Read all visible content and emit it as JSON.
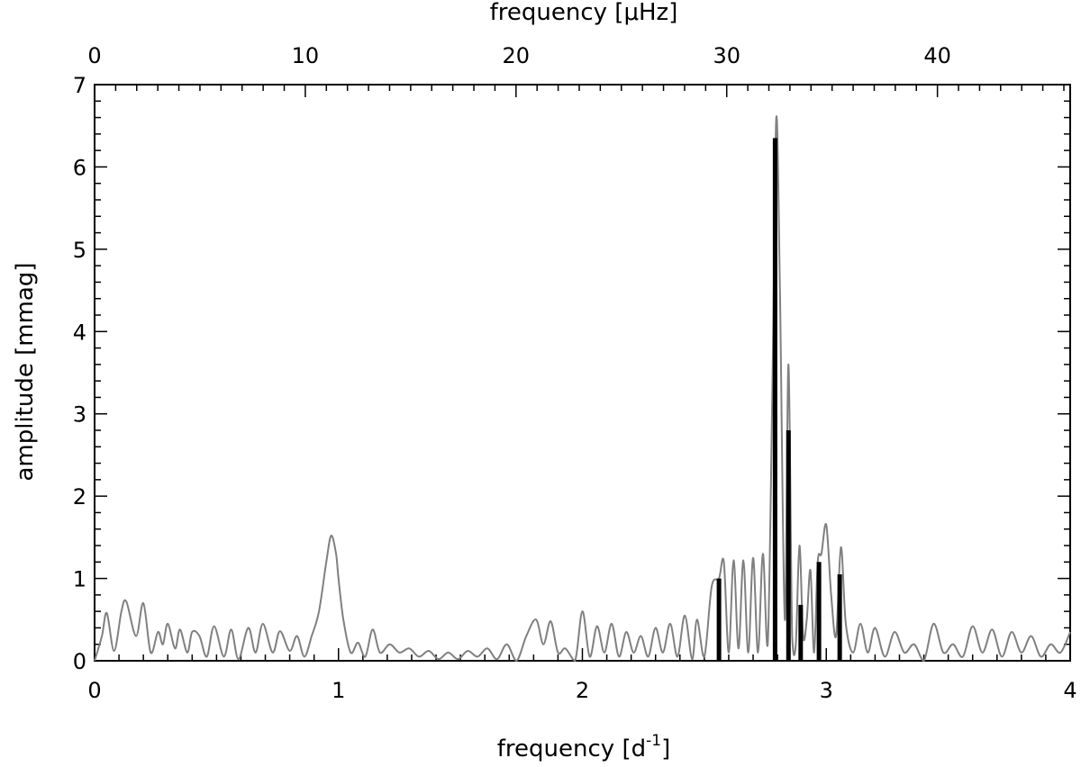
{
  "chart_data": {
    "type": "line",
    "xlabel": "frequency [d",
    "xlabel_sup": "-1",
    "xlabel_end": "]",
    "x2label": "frequency [μHz]",
    "ylabel": "amplitude [mmag]",
    "xlim": [
      0,
      4
    ],
    "ylim": [
      0,
      7
    ],
    "x2lim": [
      0,
      46.3
    ],
    "x_ticks": [
      0,
      1,
      2,
      3,
      4
    ],
    "x_tick_labels": [
      "0",
      "1",
      "2",
      "3",
      "4"
    ],
    "x2_ticks": [
      0,
      10,
      20,
      30,
      40
    ],
    "x2_tick_labels": [
      "0",
      "10",
      "20",
      "30",
      "40"
    ],
    "y_ticks": [
      0,
      1,
      2,
      3,
      4,
      5,
      6,
      7
    ],
    "y_tick_labels": [
      "0",
      "1",
      "2",
      "3",
      "4",
      "5",
      "6",
      "7"
    ],
    "grid": false,
    "series": [
      {
        "kind": "line",
        "color": "#808080",
        "x": [
          0.0,
          0.03,
          0.05,
          0.08,
          0.11,
          0.13,
          0.17,
          0.2,
          0.23,
          0.26,
          0.28,
          0.3,
          0.33,
          0.35,
          0.38,
          0.4,
          0.43,
          0.46,
          0.49,
          0.53,
          0.56,
          0.59,
          0.63,
          0.66,
          0.69,
          0.73,
          0.76,
          0.8,
          0.83,
          0.86,
          0.89,
          0.92,
          0.95,
          0.97,
          0.99,
          1.0,
          1.02,
          1.05,
          1.08,
          1.11,
          1.14,
          1.17,
          1.21,
          1.25,
          1.29,
          1.33,
          1.37,
          1.41,
          1.45,
          1.49,
          1.53,
          1.57,
          1.61,
          1.65,
          1.69,
          1.73,
          1.77,
          1.81,
          1.84,
          1.87,
          1.9,
          1.93,
          1.97,
          2.0,
          2.03,
          2.06,
          2.09,
          2.12,
          2.15,
          2.18,
          2.21,
          2.24,
          2.27,
          2.3,
          2.33,
          2.36,
          2.39,
          2.42,
          2.45,
          2.47,
          2.5,
          2.53,
          2.56,
          2.58,
          2.6,
          2.62,
          2.64,
          2.66,
          2.68,
          2.7,
          2.72,
          2.74,
          2.76,
          2.78,
          2.795,
          2.81,
          2.83,
          2.845,
          2.86,
          2.875,
          2.89,
          2.905,
          2.92,
          2.935,
          2.95,
          2.965,
          2.98,
          3.0,
          3.02,
          3.04,
          3.06,
          3.08,
          3.11,
          3.14,
          3.17,
          3.2,
          3.24,
          3.28,
          3.32,
          3.36,
          3.4,
          3.44,
          3.48,
          3.52,
          3.56,
          3.6,
          3.64,
          3.68,
          3.72,
          3.76,
          3.8,
          3.84,
          3.88,
          3.92,
          3.96,
          4.0
        ],
        "y": [
          0.0,
          0.3,
          0.58,
          0.12,
          0.6,
          0.72,
          0.3,
          0.7,
          0.1,
          0.35,
          0.2,
          0.45,
          0.15,
          0.38,
          0.1,
          0.35,
          0.3,
          0.05,
          0.42,
          0.05,
          0.38,
          0.02,
          0.4,
          0.1,
          0.45,
          0.1,
          0.36,
          0.12,
          0.3,
          0.05,
          0.3,
          0.6,
          1.2,
          1.52,
          1.3,
          1.0,
          0.5,
          0.1,
          0.22,
          0.05,
          0.38,
          0.1,
          0.2,
          0.1,
          0.15,
          0.05,
          0.12,
          0.02,
          0.1,
          0.02,
          0.12,
          0.05,
          0.15,
          0.02,
          0.2,
          0.0,
          0.3,
          0.5,
          0.2,
          0.48,
          0.1,
          0.15,
          0.0,
          0.6,
          0.05,
          0.42,
          0.1,
          0.45,
          0.05,
          0.35,
          0.1,
          0.3,
          0.05,
          0.4,
          0.1,
          0.45,
          0.05,
          0.55,
          0.02,
          0.5,
          0.05,
          0.9,
          1.0,
          1.2,
          0.1,
          1.22,
          0.15,
          1.22,
          0.1,
          1.25,
          0.1,
          1.3,
          0.2,
          3.5,
          6.6,
          4.5,
          0.5,
          3.6,
          0.3,
          0.2,
          1.4,
          0.3,
          0.5,
          1.1,
          0.1,
          1.2,
          1.3,
          1.65,
          0.8,
          0.3,
          1.38,
          0.45,
          0.1,
          0.45,
          0.1,
          0.4,
          0.05,
          0.35,
          0.1,
          0.2,
          0.0,
          0.45,
          0.1,
          0.2,
          0.05,
          0.42,
          0.1,
          0.38,
          0.05,
          0.35,
          0.1,
          0.3,
          0.05,
          0.2,
          0.1,
          0.35
        ]
      },
      {
        "kind": "stem",
        "color": "#000000",
        "x": [
          2.56,
          2.79,
          2.845,
          2.895,
          2.97,
          3.055
        ],
        "y": [
          1.0,
          6.35,
          2.8,
          0.68,
          1.2,
          1.05
        ]
      }
    ]
  }
}
